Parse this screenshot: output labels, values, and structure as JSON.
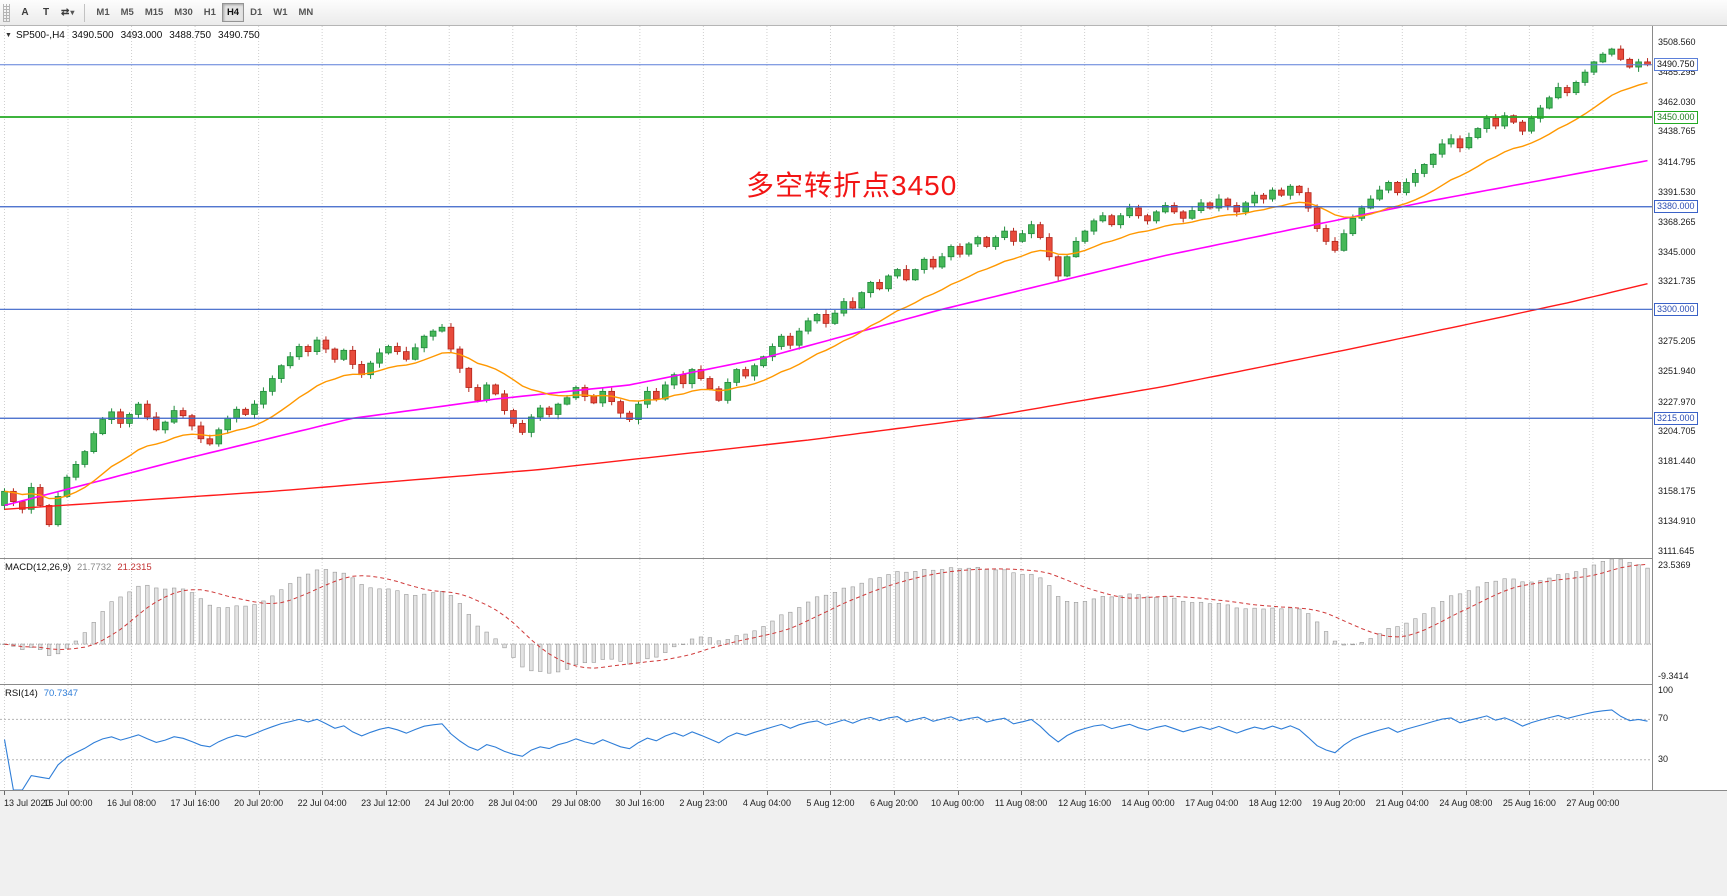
{
  "toolbar": {
    "tools": [
      {
        "label": "A"
      },
      {
        "label": "T"
      }
    ],
    "cycle_icon": "⇄",
    "timeframes": [
      "M1",
      "M5",
      "M15",
      "M30",
      "H1",
      "H4",
      "D1",
      "W1",
      "MN"
    ],
    "active_timeframe": "H4"
  },
  "chart": {
    "header": {
      "symbol": "SP500-,H4",
      "open": "3490.500",
      "high": "3493.000",
      "low": "3488.750",
      "close": "3490.750"
    },
    "annotation": {
      "text": "多空转折点3450",
      "color": "#f21515"
    },
    "price_axis": {
      "ticks": [
        "3508.560",
        "3485.295",
        "3462.030",
        "3438.765",
        "3414.795",
        "3391.530",
        "3368.265",
        "3345.000",
        "3321.735",
        "3298.470",
        "3275.205",
        "3251.940",
        "3227.970",
        "3204.705",
        "3181.440",
        "3158.175",
        "3134.910",
        "3111.645"
      ]
    },
    "hlines": [
      {
        "price": 3490.75,
        "label": "3490.750",
        "color": "#5b7fd9",
        "text_color": "#111111",
        "type": "current"
      },
      {
        "price": 3450.0,
        "label": "3450.000",
        "color": "#22aa22",
        "text_color": "#1d7a1d",
        "type": "level"
      },
      {
        "price": 3380.0,
        "label": "3380.000",
        "color": "#3a62c8",
        "text_color": "#2a4cb2",
        "type": "level"
      },
      {
        "price": 3300.0,
        "label": "3300.000",
        "color": "#3a62c8",
        "text_color": "#2a4cb2",
        "type": "level"
      },
      {
        "price": 3215.0,
        "label": "3215.000",
        "color": "#3a62c8",
        "text_color": "#2a4cb2",
        "type": "level"
      }
    ],
    "time_axis": {
      "labels": [
        "13 Jul 2020",
        "15 Jul 00:00",
        "16 Jul 08:00",
        "17 Jul 16:00",
        "20 Jul 20:00",
        "22 Jul 04:00",
        "23 Jul 12:00",
        "24 Jul 20:00",
        "28 Jul 04:00",
        "29 Jul 08:00",
        "30 Jul 16:00",
        "2 Aug 23:00",
        "4 Aug 04:00",
        "5 Aug 12:00",
        "6 Aug 20:00",
        "10 Aug 00:00",
        "11 Aug 08:00",
        "12 Aug 16:00",
        "14 Aug 00:00",
        "17 Aug 04:00",
        "18 Aug 12:00",
        "19 Aug 20:00",
        "21 Aug 04:00",
        "24 Aug 08:00",
        "25 Aug 16:00",
        "27 Aug 00:00"
      ]
    }
  },
  "macd": {
    "name": "MACD(12,26,9)",
    "main_value": "21.7732",
    "signal_value": "21.2315",
    "axis_labels": [
      {
        "value": 23.5369,
        "text": "23.5369"
      },
      {
        "value": -9.3414,
        "text": "-9.3414"
      }
    ]
  },
  "rsi": {
    "name": "RSI(14)",
    "value": "70.7347",
    "axis_labels": [
      {
        "value": 100,
        "text": "100"
      },
      {
        "value": 70,
        "text": "70"
      },
      {
        "value": 30,
        "text": "30"
      }
    ]
  },
  "colors": {
    "up_fill": "#46b858",
    "up_border": "#1f8a3c",
    "down_fill": "#e84b3c",
    "down_border": "#b3261c",
    "ma_fast": "#ff9800",
    "ma_mid": "#ff00ff",
    "ma_slow": "#ff1a1a",
    "grid": "#cfcfcf",
    "macd_hist_fill": "#e3e3e3",
    "macd_hist_border": "#9a9a9a",
    "macd_signal": "#d03a3a",
    "rsi_line": "#2f7ed8",
    "rsi_level": "#b5b5b5"
  },
  "chart_data": {
    "type": "candlestick",
    "symbol": "SP500-",
    "timeframe": "H4",
    "title": "SP500-,H4",
    "last_ohlc": {
      "open": 3490.5,
      "high": 3493.0,
      "low": 3488.75,
      "close": 3490.75
    },
    "x_range": [
      "13 Jul 2020",
      "27 Aug 2020"
    ],
    "price_axis_range": [
      3106,
      3521
    ],
    "open_first": 3147,
    "closes": [
      3158,
      3150,
      3144,
      3161,
      3147,
      3132,
      3154,
      3169,
      3179,
      3189,
      3203,
      3214,
      3220,
      3211,
      3218,
      3226,
      3216,
      3206,
      3212,
      3221,
      3217,
      3209,
      3199,
      3195,
      3206,
      3215,
      3222,
      3218,
      3226,
      3236,
      3246,
      3256,
      3263,
      3271,
      3267,
      3276,
      3269,
      3261,
      3268,
      3257,
      3249,
      3258,
      3266,
      3271,
      3267,
      3261,
      3270,
      3279,
      3283,
      3286,
      3269,
      3254,
      3239,
      3229,
      3241,
      3234,
      3221,
      3211,
      3204,
      3216,
      3223,
      3218,
      3226,
      3231,
      3239,
      3232,
      3227,
      3236,
      3228,
      3219,
      3214,
      3226,
      3236,
      3230,
      3241,
      3249,
      3242,
      3253,
      3246,
      3238,
      3229,
      3243,
      3253,
      3248,
      3256,
      3263,
      3271,
      3279,
      3272,
      3283,
      3291,
      3296,
      3289,
      3297,
      3306,
      3301,
      3313,
      3321,
      3316,
      3326,
      3331,
      3323,
      3331,
      3339,
      3333,
      3341,
      3349,
      3343,
      3351,
      3356,
      3349,
      3356,
      3361,
      3353,
      3359,
      3366,
      3356,
      3341,
      3326,
      3341,
      3353,
      3361,
      3369,
      3373,
      3366,
      3373,
      3379,
      3373,
      3369,
      3376,
      3381,
      3376,
      3371,
      3377,
      3383,
      3379,
      3386,
      3381,
      3376,
      3383,
      3389,
      3386,
      3393,
      3389,
      3396,
      3391,
      3379,
      3363,
      3353,
      3346,
      3359,
      3371,
      3379,
      3386,
      3393,
      3399,
      3391,
      3399,
      3406,
      3413,
      3421,
      3429,
      3433,
      3426,
      3434,
      3441,
      3449,
      3443,
      3451,
      3446,
      3439,
      3449,
      3457,
      3465,
      3473,
      3469,
      3477,
      3485,
      3493,
      3499,
      3503,
      3495,
      3489,
      3493,
      3490.75
    ],
    "ma_fast_period": 16,
    "ma_mid_anchors": [
      [
        0,
        3147
      ],
      [
        20,
        3183
      ],
      [
        39,
        3215
      ],
      [
        55,
        3230
      ],
      [
        70,
        3241
      ],
      [
        85,
        3262
      ],
      [
        105,
        3300
      ],
      [
        130,
        3342
      ],
      [
        160,
        3385
      ],
      [
        184,
        3416
      ]
    ],
    "ma_slow_anchors": [
      [
        0,
        3144
      ],
      [
        30,
        3158
      ],
      [
        60,
        3175
      ],
      [
        90,
        3198
      ],
      [
        110,
        3216
      ],
      [
        130,
        3240
      ],
      [
        150,
        3268
      ],
      [
        165,
        3290
      ],
      [
        175,
        3305
      ],
      [
        184,
        3320
      ]
    ],
    "indicators": {
      "macd": {
        "fast": 12,
        "slow": 26,
        "signal": 9,
        "last_main": 21.7732,
        "last_signal": 21.2315,
        "scale": [
          -11.5,
          24.5
        ]
      },
      "rsi": {
        "period": 14,
        "last": 70.7347,
        "scale": [
          0,
          104
        ],
        "levels": [
          70,
          30
        ]
      }
    }
  }
}
